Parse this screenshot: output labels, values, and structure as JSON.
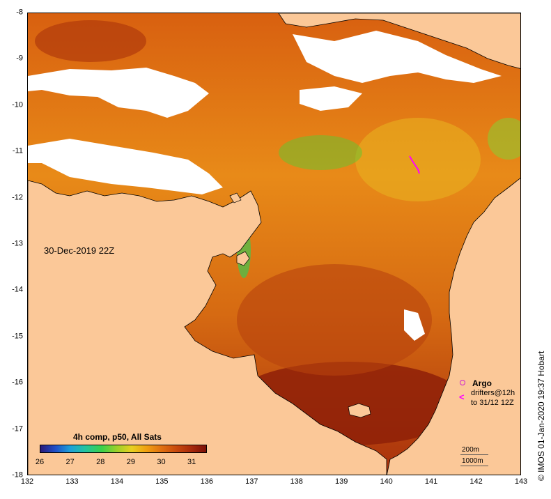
{
  "map": {
    "timestamp": "30-Dec-2019 22Z",
    "copyright": "© IMOS 01-Jan-2020 19:37 Hobart",
    "x_axis": {
      "ticks": [
        132,
        133,
        134,
        135,
        136,
        137,
        138,
        139,
        140,
        141,
        142,
        143
      ],
      "range": [
        132,
        143
      ]
    },
    "y_axis": {
      "ticks": [
        -8,
        -9,
        -10,
        -11,
        -12,
        -13,
        -14,
        -15,
        -16,
        -17,
        -18
      ],
      "range": [
        -18,
        -8
      ]
    },
    "colorbar": {
      "title": "4h comp, p50, All Sats",
      "ticks": [
        26,
        27,
        28,
        29,
        30,
        31
      ],
      "range": [
        26,
        31.5
      ]
    },
    "legend": {
      "argo_label": "Argo",
      "drifters_line1": "drifters@12h",
      "drifters_line2": "to 31/12 12Z",
      "argo_icon": "circle-icon",
      "drifter_icon": "chevron-icon",
      "argo_color": "#d020d0",
      "drifter_color": "#ff00ff"
    },
    "scale": {
      "label_200": "200m",
      "label_1000": "1000m"
    },
    "colors": {
      "land": "#fbc898",
      "cloud": "#ffffff",
      "sst_warm": "#a82a0c",
      "sst_mid": "#e07010",
      "sst_cool": "#22c060"
    }
  }
}
